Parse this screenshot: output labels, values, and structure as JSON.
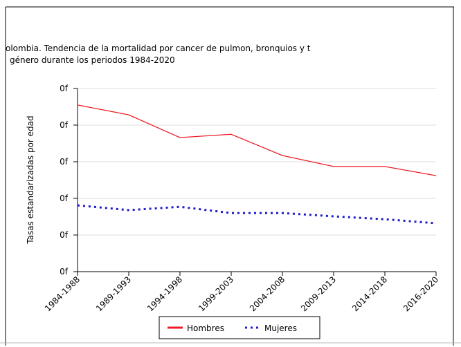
{
  "chart_data": {
    "type": "line",
    "title": "olombia. Tendencia de la mortalidad por cancer de pulmon, bronquios y t",
    "subtitle": "género durante los periodos 1984-2020",
    "y_label": "Tasas estandarizadas por edad",
    "categories": [
      "1984-1988",
      "1989-1993",
      "1994-1998",
      "1999-2003",
      "2004-2008",
      "2009-2013",
      "2014-2018",
      "2016-2020"
    ],
    "series": [
      {
        "name": "Hombres",
        "color": "#ee1c25",
        "values": [
          45.5,
          42.8,
          36.6,
          37.5,
          31.7,
          28.7,
          28.7,
          26.2
        ]
      },
      {
        "name": "Mujeres",
        "color": "#1c1ccc",
        "values": [
          18.1,
          16.8,
          17.7,
          16.0,
          16.0,
          15.1,
          14.3,
          13.2
        ]
      }
    ],
    "ylim": [
      0,
      50
    ],
    "yticks": [
      {
        "value": 0,
        "label": "0f"
      },
      {
        "value": 10,
        "label": "0f"
      },
      {
        "value": 20,
        "label": "0f"
      },
      {
        "value": 30,
        "label": "0f"
      },
      {
        "value": 40,
        "label": "0f"
      },
      {
        "value": 50,
        "label": "0f"
      }
    ],
    "grid": true,
    "legend": "bottom"
  }
}
